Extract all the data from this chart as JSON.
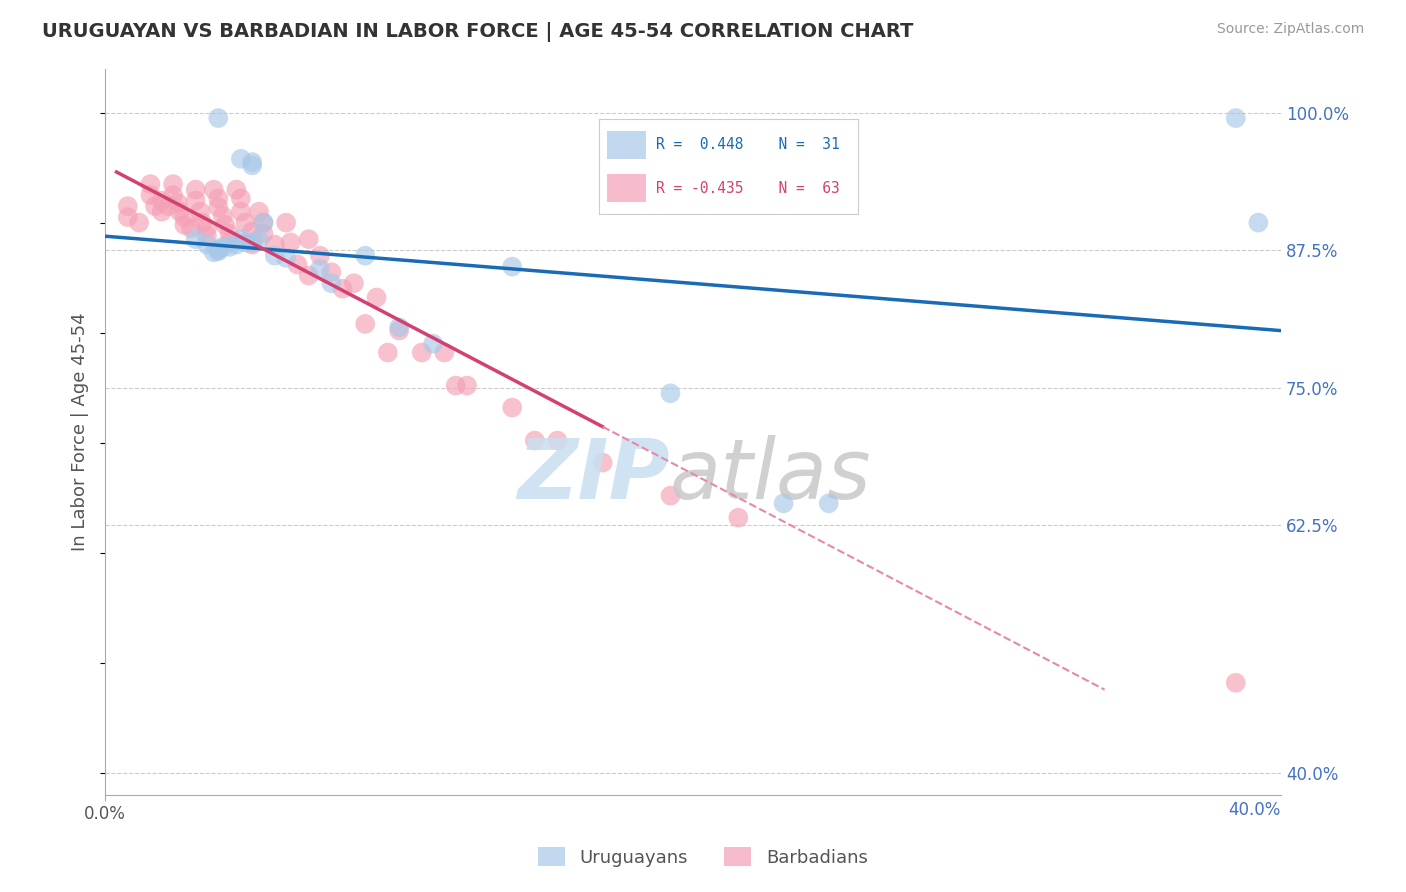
{
  "title": "URUGUAYAN VS BARBADIAN IN LABOR FORCE | AGE 45-54 CORRELATION CHART",
  "source": "Source: ZipAtlas.com",
  "ylabel": "In Labor Force | Age 45-54",
  "xlim_pct": [
    0.0,
    0.52
  ],
  "ylim_pct": [
    0.38,
    1.04
  ],
  "yticks": [
    0.4,
    0.625,
    0.75,
    0.875,
    1.0
  ],
  "yticklabels": [
    "40.0%",
    "62.5%",
    "75.0%",
    "87.5%",
    "100.0%"
  ],
  "xtick_left_label": "0.0%",
  "xtick_right_label": "40.0%",
  "blue_scatter_color": "#a8c8e8",
  "pink_scatter_color": "#f4a0b5",
  "blue_line_color": "#1a6bb5",
  "pink_line_color": "#d44070",
  "pink_dash_color": "#e888a8",
  "watermark_zip_color": "#c8dff0",
  "watermark_atlas_color": "#c8c8c8",
  "legend_r_blue": "R =  0.448",
  "legend_n_blue": "N =  31",
  "legend_r_pink": "R = -0.435",
  "legend_n_pink": "N =  63",
  "uruguayan_x": [
    0.05,
    0.06,
    0.065,
    0.065,
    0.07,
    0.045,
    0.06,
    0.068,
    0.065,
    0.062,
    0.058,
    0.055,
    0.052,
    0.05,
    0.05,
    0.05,
    0.048,
    0.075,
    0.08,
    0.095,
    0.1,
    0.115,
    0.13,
    0.145,
    0.18,
    0.25,
    0.3,
    0.32,
    0.5,
    0.51,
    0.04
  ],
  "uruguayan_y": [
    0.995,
    0.958,
    0.955,
    0.952,
    0.9,
    0.88,
    0.885,
    0.885,
    0.882,
    0.882,
    0.88,
    0.878,
    0.878,
    0.876,
    0.875,
    0.874,
    0.873,
    0.87,
    0.868,
    0.858,
    0.845,
    0.87,
    0.805,
    0.79,
    0.86,
    0.745,
    0.645,
    0.645,
    0.995,
    0.9,
    0.885
  ],
  "barbadian_x": [
    0.01,
    0.01,
    0.015,
    0.02,
    0.02,
    0.022,
    0.025,
    0.025,
    0.028,
    0.03,
    0.03,
    0.032,
    0.033,
    0.035,
    0.035,
    0.038,
    0.04,
    0.04,
    0.042,
    0.043,
    0.045,
    0.045,
    0.048,
    0.05,
    0.05,
    0.052,
    0.053,
    0.055,
    0.055,
    0.058,
    0.06,
    0.06,
    0.062,
    0.065,
    0.065,
    0.068,
    0.07,
    0.07,
    0.075,
    0.08,
    0.082,
    0.085,
    0.09,
    0.09,
    0.095,
    0.1,
    0.105,
    0.11,
    0.115,
    0.12,
    0.125,
    0.13,
    0.14,
    0.15,
    0.155,
    0.16,
    0.18,
    0.19,
    0.2,
    0.22,
    0.25,
    0.28,
    0.5
  ],
  "barbadian_y": [
    0.915,
    0.905,
    0.9,
    0.935,
    0.925,
    0.915,
    0.92,
    0.91,
    0.915,
    0.935,
    0.925,
    0.918,
    0.91,
    0.905,
    0.898,
    0.895,
    0.93,
    0.92,
    0.91,
    0.9,
    0.895,
    0.888,
    0.93,
    0.922,
    0.914,
    0.906,
    0.898,
    0.89,
    0.882,
    0.93,
    0.922,
    0.91,
    0.9,
    0.892,
    0.88,
    0.91,
    0.9,
    0.89,
    0.88,
    0.9,
    0.882,
    0.862,
    0.885,
    0.852,
    0.87,
    0.855,
    0.84,
    0.845,
    0.808,
    0.832,
    0.782,
    0.802,
    0.782,
    0.782,
    0.752,
    0.752,
    0.732,
    0.702,
    0.702,
    0.682,
    0.652,
    0.632,
    0.482
  ]
}
